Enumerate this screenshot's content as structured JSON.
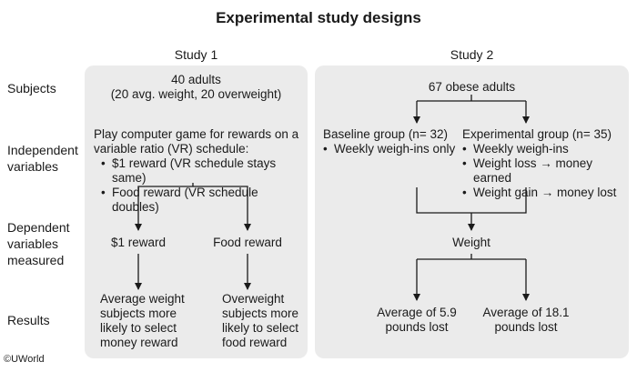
{
  "title": "Experimental study designs",
  "columns": {
    "study1": "Study 1",
    "study2": "Study 2"
  },
  "row_labels": {
    "subjects": "Subjects",
    "independent_1": "Independent",
    "independent_2": "variables",
    "dependent_1": "Dependent",
    "dependent_2": "variables",
    "dependent_3": "measured",
    "results": "Results"
  },
  "study1": {
    "subjects_line1": "40 adults",
    "subjects_line2": "(20 avg. weight, 20 overweight)",
    "iv_line1": "Play computer game for rewards on a",
    "iv_line2": "variable ratio (VR) schedule:",
    "iv_bullets": [
      "$1 reward (VR schedule stays same)",
      "Food reward (VR schedule doubles)"
    ],
    "dv_left": "$1 reward",
    "dv_right": "Food reward",
    "result_left": [
      "Average weight",
      "subjects more",
      "likely to select",
      "money reward"
    ],
    "result_right": [
      "Overweight",
      "subjects more",
      "likely to select",
      "food reward"
    ]
  },
  "study2": {
    "subjects": "67 obese adults",
    "baseline_title": "Baseline group (n= 32)",
    "baseline_bullets": [
      "Weekly weigh-ins only"
    ],
    "experimental_title": "Experimental group (n= 35)",
    "experimental_bullets": [
      "Weekly weigh-ins",
      "Weight loss → money earned",
      "Weight gain → money lost"
    ],
    "dv": "Weight",
    "result_left": [
      "Average of 5.9",
      "pounds lost"
    ],
    "result_right": [
      "Average of 18.1",
      "pounds lost"
    ]
  },
  "copyright": "©UWorld"
}
